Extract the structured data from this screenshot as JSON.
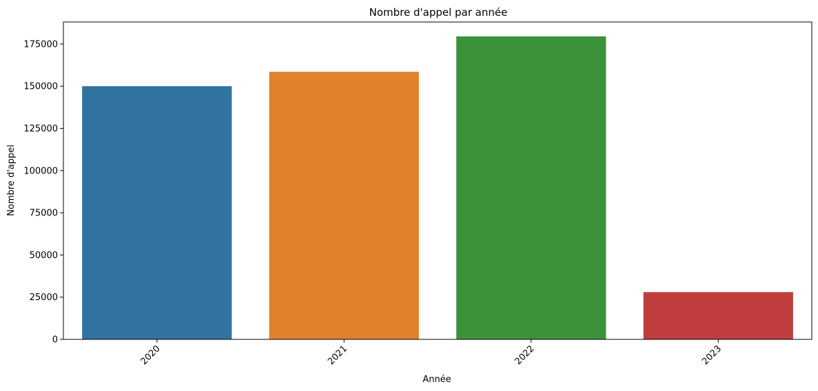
{
  "chart_data": {
    "type": "bar",
    "title": "Nombre d'appel par année",
    "xlabel": "Année",
    "ylabel": "Nombre d'appel",
    "categories": [
      "2020",
      "2021",
      "2022",
      "2023"
    ],
    "values": [
      150000,
      158500,
      179500,
      28000
    ],
    "colors": [
      "#3274a1",
      "#e1812c",
      "#3a923a",
      "#c03d3e"
    ],
    "ylim": [
      0,
      188000
    ],
    "yticks": [
      0,
      25000,
      50000,
      75000,
      100000,
      125000,
      150000,
      175000
    ],
    "xtick_rotation": 45,
    "grid": false,
    "legend": "none"
  }
}
